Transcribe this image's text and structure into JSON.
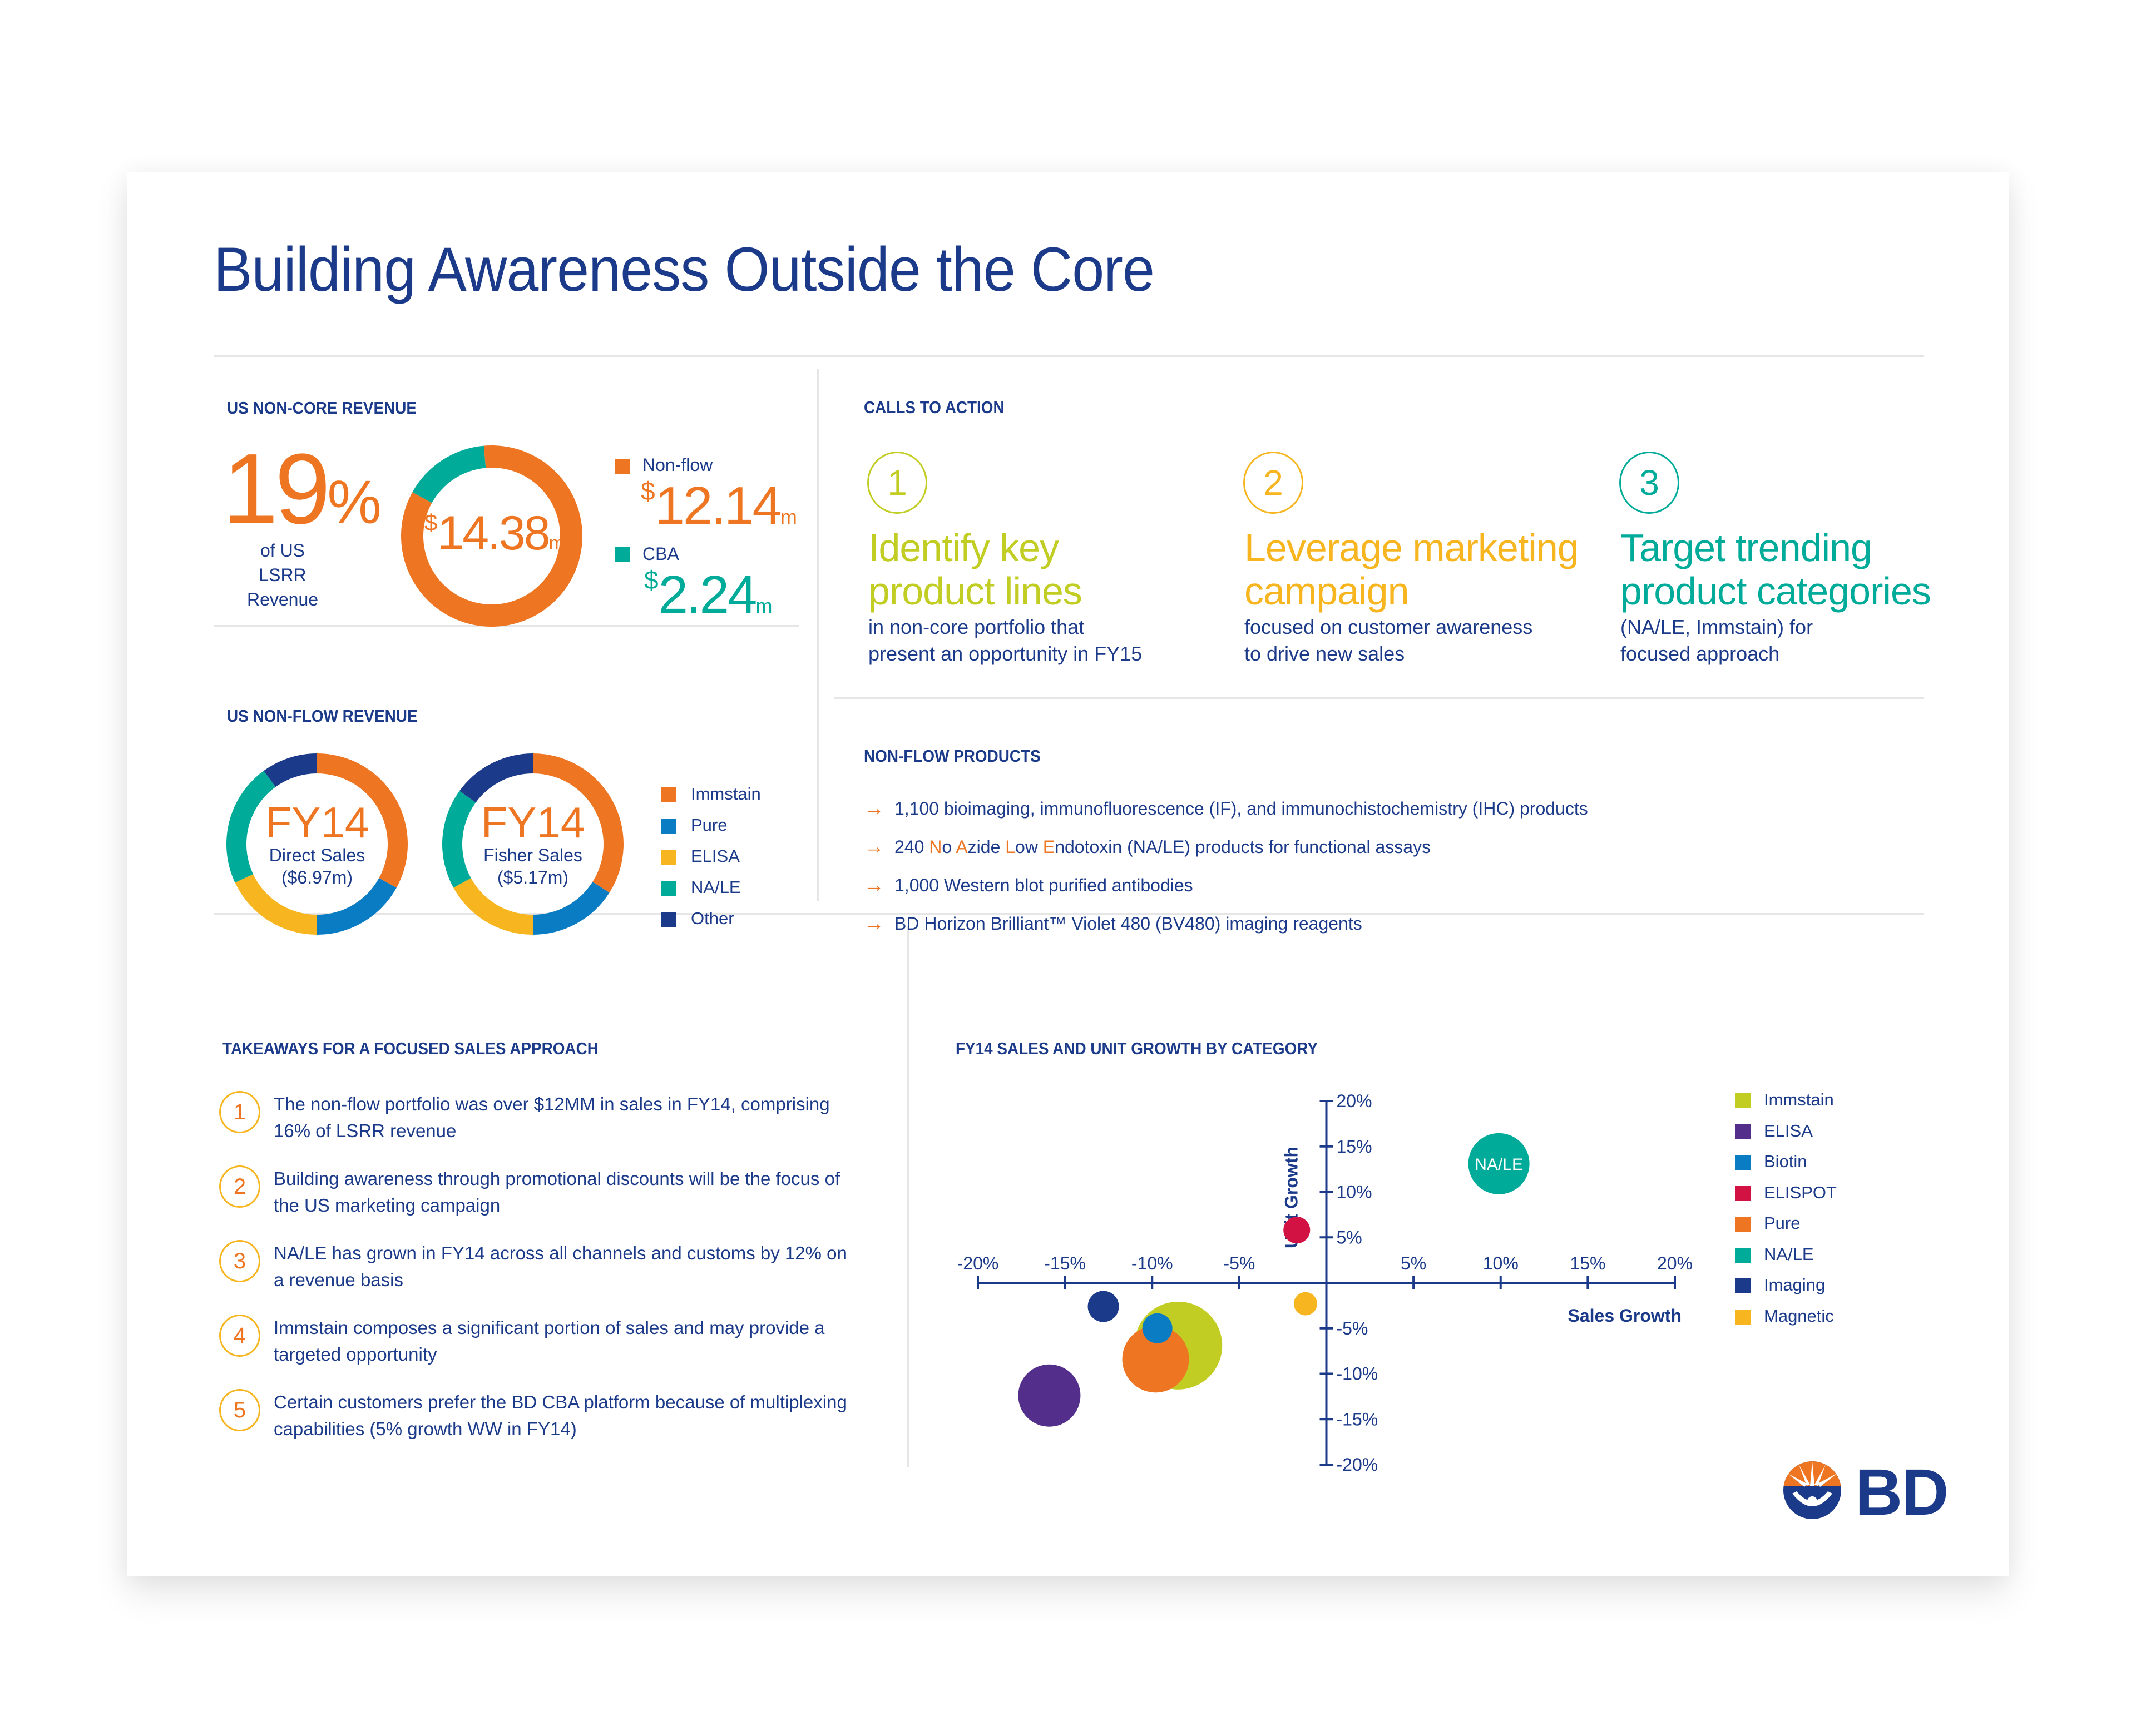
{
  "title": "Building Awareness Outside the Core",
  "colors": {
    "navy": "#1b3a8a",
    "orange": "#ee7623",
    "teal": "#00ab9a",
    "blue": "#0a7cc3",
    "yellow": "#f7b520",
    "lime": "#c2cd23",
    "purple": "#532e8b",
    "red": "#d11242",
    "divider": "#e6e6e6"
  },
  "noncore": {
    "heading": "US NON-CORE REVENUE",
    "percent_value": "19",
    "percent_sign": "%",
    "percent_caption_line1": "of US LSRR",
    "percent_caption_line2": "Revenue",
    "total": {
      "currency": "$",
      "value": "14.38",
      "unit": "m"
    },
    "segments": [
      {
        "label": "Non-flow",
        "currency": "$",
        "value": "12.14",
        "unit": "m",
        "amount": 12.14,
        "color": "#ee7623"
      },
      {
        "label": "CBA",
        "currency": "$",
        "value": "2.24",
        "unit": "m",
        "amount": 2.24,
        "color": "#00ab9a"
      }
    ]
  },
  "nonflow_revenue": {
    "heading": "US NON-FLOW REVENUE",
    "donuts": [
      {
        "year": "FY14",
        "label": "Direct Sales",
        "amount": "($6.97m)",
        "shares": {
          "Immstain": 0.33,
          "Pure": 0.17,
          "ELISA": 0.18,
          "NA/LE": 0.22,
          "Other": 0.1
        }
      },
      {
        "year": "FY14",
        "label": "Fisher Sales",
        "amount": "($5.17m)",
        "shares": {
          "Immstain": 0.34,
          "Pure": 0.16,
          "ELISA": 0.17,
          "NA/LE": 0.18,
          "Other": 0.15
        }
      }
    ],
    "legend": [
      {
        "label": "Immstain",
        "color": "#ee7623"
      },
      {
        "label": "Pure",
        "color": "#0a7cc3"
      },
      {
        "label": "ELISA",
        "color": "#f7b520"
      },
      {
        "label": "NA/LE",
        "color": "#00ab9a"
      },
      {
        "label": "Other",
        "color": "#1b3a8a"
      }
    ]
  },
  "calls_to_action": {
    "heading": "CALLS TO ACTION",
    "items": [
      {
        "number": "1",
        "headline_line1": "Identify key",
        "headline_line2": "product lines",
        "sub_line1": "in non-core portfolio that",
        "sub_line2": "present an opportunity in FY15",
        "color": "#c2cd23"
      },
      {
        "number": "2",
        "headline_line1": "Leverage marketing",
        "headline_line2": "campaign",
        "sub_line1": "focused on customer awareness",
        "sub_line2": "to drive new sales",
        "color": "#f7b520"
      },
      {
        "number": "3",
        "headline_line1": "Target trending",
        "headline_line2": "product categories",
        "sub_line1": "(NA/LE, Immstain) for",
        "sub_line2": "focused approach",
        "color": "#00ab9a"
      }
    ]
  },
  "nonflow_products": {
    "heading": "NON-FLOW PRODUCTS",
    "items": [
      {
        "text": "1,100 bioimaging, immunofluorescence (IF), and immunochistochemistry (IHC) products"
      },
      {
        "parts": [
          "240 ",
          "N",
          "o ",
          "A",
          "zide ",
          "L",
          "ow ",
          "E",
          "ndotoxin (NA/LE) products for functional assays"
        ]
      },
      {
        "text": "1,000 Western blot purified antibodies"
      },
      {
        "text": "BD Horizon Brilliant™ Violet 480 (BV480) imaging reagents"
      }
    ]
  },
  "takeaways": {
    "heading": "TAKEAWAYS FOR A FOCUSED SALES APPROACH",
    "items": [
      {
        "number": "1",
        "text": "The non-flow portfolio was over $12MM in sales in FY14, comprising 16% of LSRR revenue"
      },
      {
        "number": "2",
        "text": "Building awareness through promotional discounts will be the focus of the US marketing campaign"
      },
      {
        "number": "3",
        "text": "NA/LE has grown in FY14 across all channels and customs by 12% on a revenue basis"
      },
      {
        "number": "4",
        "text": "Immstain composes a significant portion of sales and may provide a targeted opportunity"
      },
      {
        "number": "5",
        "text": "Certain customers prefer the BD CBA platform because of multiplexing capabilities (5% growth WW in FY14)"
      }
    ]
  },
  "chart_data": {
    "type": "scatter",
    "title": "FY14 SALES AND UNIT GROWTH BY CATEGORY",
    "xlabel": "Sales Growth",
    "ylabel": "Unit Growth",
    "xlim": [
      -20,
      20
    ],
    "ylim": [
      -20,
      20
    ],
    "x_ticks": [
      "-20%",
      "-15%",
      "-10%",
      "-5%",
      "5%",
      "10%",
      "15%",
      "20%"
    ],
    "y_ticks": [
      "20%",
      "15%",
      "10%",
      "5%",
      "-5%",
      "-10%",
      "-15%",
      "-20%"
    ],
    "grid": false,
    "legend_position": "right",
    "series": [
      {
        "name": "Immstain",
        "x": -8.5,
        "y": -6.9,
        "size": 79,
        "color": "#c2cd23"
      },
      {
        "name": "ELISA",
        "x": -15.9,
        "y": -12.4,
        "size": 56,
        "color": "#532e8b"
      },
      {
        "name": "Biotin",
        "x": -9.7,
        "y": -5.0,
        "size": 27,
        "color": "#0a7cc3"
      },
      {
        "name": "ELISPOT",
        "x": -1.7,
        "y": 5.8,
        "size": 24,
        "color": "#d11242"
      },
      {
        "name": "Pure",
        "x": -9.8,
        "y": -8.4,
        "size": 60,
        "color": "#ee7623"
      },
      {
        "name": "NA/LE",
        "x": 9.9,
        "y": 13.1,
        "size": 55,
        "color": "#00ab9a",
        "label": "NA/LE"
      },
      {
        "name": "Imaging",
        "x": -12.8,
        "y": -2.6,
        "size": 28,
        "color": "#1b3a8a"
      },
      {
        "name": "Magnetic",
        "x": -1.2,
        "y": -2.3,
        "size": 21,
        "color": "#f7b520"
      }
    ],
    "draw_order": [
      "ELISA",
      "Imaging",
      "Immstain",
      "Pure",
      "Biotin",
      "ELISPOT",
      "Magnetic",
      "NA/LE"
    ]
  },
  "brand": {
    "name": "BD",
    "logo_icon": "bd-sunburst-logo"
  }
}
